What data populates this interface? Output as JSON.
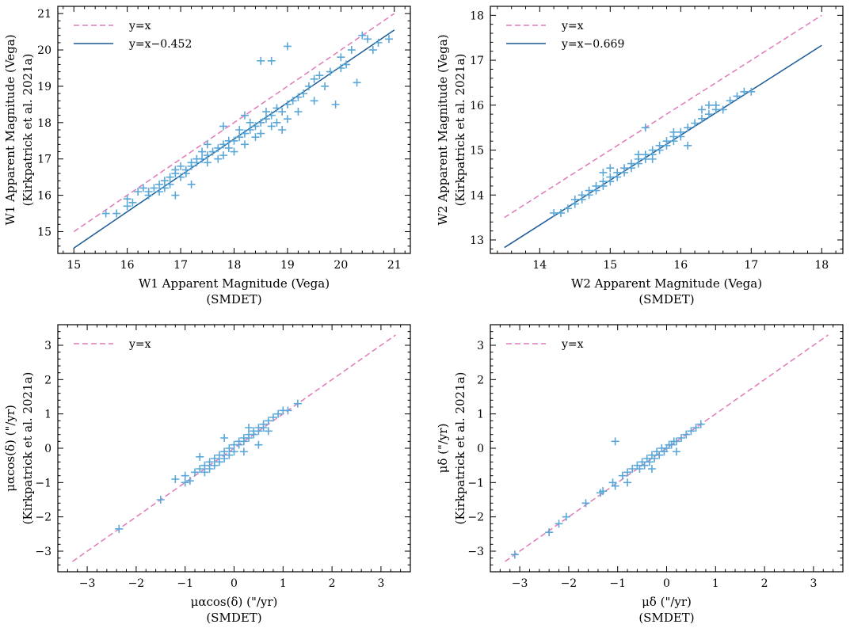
{
  "colors": {
    "identity": "#e07ab8",
    "fit": "#1a5a96",
    "points": "#5ba8d8"
  },
  "chart_data": [
    {
      "id": "w1",
      "type": "scatter",
      "xlabel": [
        "W1 Apparent Magnitude (Vega)",
        "(SMDET)"
      ],
      "ylabel": [
        "W1 Apparent Magnitude (Vega)",
        "(Kirkpatrick et al. 2021a)"
      ],
      "xlim": [
        14.7,
        21.3
      ],
      "ylim": [
        14.4,
        21.2
      ],
      "xticks": [
        15,
        16,
        17,
        18,
        19,
        20,
        21
      ],
      "yticks": [
        15,
        16,
        17,
        18,
        19,
        20,
        21
      ],
      "xminor": 0.2,
      "yminor": 0.2,
      "tickfmt": "plain",
      "lines": [
        {
          "label": "y=x",
          "offset": 0,
          "style": "dashed",
          "range": [
            15,
            21
          ]
        },
        {
          "label": "y=x−0.452",
          "offset": -0.452,
          "style": "solid",
          "range": [
            15,
            21
          ]
        }
      ],
      "points": [
        [
          15.6,
          15.5
        ],
        [
          15.8,
          15.5
        ],
        [
          16.0,
          15.7
        ],
        [
          16.0,
          15.9
        ],
        [
          16.1,
          15.8
        ],
        [
          16.2,
          16.1
        ],
        [
          16.3,
          16.2
        ],
        [
          16.4,
          16.0
        ],
        [
          16.4,
          16.1
        ],
        [
          16.5,
          16.2
        ],
        [
          16.6,
          16.1
        ],
        [
          16.6,
          16.3
        ],
        [
          16.7,
          16.4
        ],
        [
          16.7,
          16.2
        ],
        [
          16.8,
          16.5
        ],
        [
          16.8,
          16.3
        ],
        [
          16.9,
          16.6
        ],
        [
          16.9,
          16.7
        ],
        [
          17.0,
          16.5
        ],
        [
          17.0,
          16.8
        ],
        [
          17.1,
          16.7
        ],
        [
          17.1,
          16.6
        ],
        [
          17.2,
          16.8
        ],
        [
          17.2,
          16.9
        ],
        [
          17.3,
          17.0
        ],
        [
          17.3,
          16.9
        ],
        [
          17.4,
          17.0
        ],
        [
          17.4,
          17.2
        ],
        [
          17.5,
          17.1
        ],
        [
          17.5,
          16.9
        ],
        [
          17.6,
          17.2
        ],
        [
          17.7,
          17.3
        ],
        [
          17.7,
          17.0
        ],
        [
          17.8,
          17.4
        ],
        [
          17.8,
          17.1
        ],
        [
          17.9,
          17.5
        ],
        [
          17.9,
          17.3
        ],
        [
          18.0,
          17.5
        ],
        [
          18.0,
          17.2
        ],
        [
          18.1,
          17.6
        ],
        [
          18.1,
          17.8
        ],
        [
          18.2,
          17.7
        ],
        [
          18.2,
          17.4
        ],
        [
          18.3,
          17.8
        ],
        [
          18.3,
          18.0
        ],
        [
          18.4,
          17.6
        ],
        [
          18.4,
          17.9
        ],
        [
          18.5,
          18.0
        ],
        [
          18.5,
          17.7
        ],
        [
          18.6,
          18.1
        ],
        [
          18.6,
          18.3
        ],
        [
          18.7,
          18.2
        ],
        [
          18.7,
          17.9
        ],
        [
          18.8,
          18.4
        ],
        [
          18.8,
          18.0
        ],
        [
          18.9,
          18.3
        ],
        [
          18.9,
          17.8
        ],
        [
          19.0,
          18.5
        ],
        [
          19.0,
          18.1
        ],
        [
          19.1,
          18.6
        ],
        [
          19.2,
          18.7
        ],
        [
          19.2,
          18.3
        ],
        [
          19.3,
          18.8
        ],
        [
          19.4,
          19.0
        ],
        [
          19.5,
          18.6
        ],
        [
          19.5,
          19.2
        ],
        [
          19.6,
          19.3
        ],
        [
          19.7,
          19.0
        ],
        [
          19.8,
          19.4
        ],
        [
          19.9,
          18.5
        ],
        [
          20.0,
          19.5
        ],
        [
          20.0,
          19.8
        ],
        [
          20.1,
          19.6
        ],
        [
          20.2,
          20.0
        ],
        [
          20.3,
          19.1
        ],
        [
          20.4,
          20.4
        ],
        [
          20.5,
          20.3
        ],
        [
          20.6,
          20.0
        ],
        [
          20.7,
          20.2
        ],
        [
          20.9,
          20.3
        ],
        [
          17.2,
          16.3
        ],
        [
          17.8,
          17.9
        ],
        [
          18.5,
          19.7
        ],
        [
          19.0,
          20.1
        ],
        [
          18.7,
          19.7
        ],
        [
          16.9,
          16.0
        ],
        [
          17.5,
          17.4
        ],
        [
          18.2,
          18.2
        ]
      ]
    },
    {
      "id": "w2",
      "type": "scatter",
      "xlabel": [
        "W2 Apparent Magnitude (Vega)",
        "(SMDET)"
      ],
      "ylabel": [
        "W2 Apparent Magnitude (Vega)",
        "(Kirkpatrick et al. 2021a)"
      ],
      "xlim": [
        13.3,
        18.3
      ],
      "ylim": [
        12.7,
        18.2
      ],
      "xticks": [
        14,
        15,
        16,
        17,
        18
      ],
      "yticks": [
        13,
        14,
        15,
        16,
        17,
        18
      ],
      "xminor": 0.2,
      "yminor": 0.2,
      "tickfmt": "plain",
      "lines": [
        {
          "label": "y=x",
          "offset": 0,
          "style": "dashed",
          "range": [
            13.5,
            18
          ]
        },
        {
          "label": "y=x−0.669",
          "offset": -0.669,
          "style": "solid",
          "range": [
            13.5,
            18
          ]
        }
      ],
      "points": [
        [
          14.2,
          13.6
        ],
        [
          14.3,
          13.6
        ],
        [
          14.4,
          13.7
        ],
        [
          14.5,
          13.8
        ],
        [
          14.5,
          13.9
        ],
        [
          14.6,
          13.9
        ],
        [
          14.6,
          14.0
        ],
        [
          14.7,
          14.0
        ],
        [
          14.7,
          14.1
        ],
        [
          14.8,
          14.1
        ],
        [
          14.8,
          14.2
        ],
        [
          14.9,
          14.2
        ],
        [
          14.9,
          14.3
        ],
        [
          15.0,
          14.3
        ],
        [
          15.0,
          14.4
        ],
        [
          15.1,
          14.4
        ],
        [
          15.1,
          14.5
        ],
        [
          15.2,
          14.5
        ],
        [
          15.2,
          14.6
        ],
        [
          15.3,
          14.6
        ],
        [
          15.3,
          14.7
        ],
        [
          15.4,
          14.7
        ],
        [
          15.4,
          14.8
        ],
        [
          15.5,
          14.8
        ],
        [
          15.5,
          14.9
        ],
        [
          15.6,
          14.9
        ],
        [
          15.6,
          15.0
        ],
        [
          15.7,
          15.0
        ],
        [
          15.7,
          15.1
        ],
        [
          15.8,
          15.1
        ],
        [
          15.8,
          15.2
        ],
        [
          15.9,
          15.2
        ],
        [
          15.9,
          15.3
        ],
        [
          16.0,
          15.3
        ],
        [
          16.0,
          15.4
        ],
        [
          16.1,
          15.5
        ],
        [
          16.2,
          15.6
        ],
        [
          16.3,
          15.7
        ],
        [
          16.3,
          15.9
        ],
        [
          16.4,
          15.8
        ],
        [
          16.4,
          16.0
        ],
        [
          16.5,
          15.9
        ],
        [
          16.5,
          16.0
        ],
        [
          16.6,
          15.9
        ],
        [
          16.7,
          16.1
        ],
        [
          16.8,
          16.2
        ],
        [
          16.9,
          16.3
        ],
        [
          17.0,
          16.3
        ],
        [
          15.5,
          15.5
        ],
        [
          15.4,
          14.9
        ],
        [
          15.6,
          14.8
        ],
        [
          16.1,
          15.1
        ],
        [
          15.9,
          15.4
        ],
        [
          15.0,
          14.6
        ],
        [
          14.9,
          14.5
        ]
      ]
    },
    {
      "id": "pmra",
      "type": "scatter",
      "xlabel": [
        "μαcos(δ) (\"/yr)",
        "(SMDET)"
      ],
      "ylabel": [
        "μαcos(δ) (\"/yr)",
        "(Kirkpatrick et al. 2021a)"
      ],
      "xlim": [
        -3.6,
        3.6
      ],
      "ylim": [
        -3.6,
        3.6
      ],
      "xticks": [
        -3,
        -2,
        -1,
        0,
        1,
        2,
        3
      ],
      "yticks": [
        -3,
        -2,
        -1,
        0,
        1,
        2,
        3
      ],
      "xminor": 0.2,
      "yminor": 0.2,
      "tickfmt": "signed",
      "lines": [
        {
          "label": "y=x",
          "offset": 0,
          "style": "dashed",
          "range": [
            -3.3,
            3.3
          ]
        }
      ],
      "points": [
        [
          -2.35,
          -2.35
        ],
        [
          -1.5,
          -1.5
        ],
        [
          -1.2,
          -0.9
        ],
        [
          -1.0,
          -0.8
        ],
        [
          -1.0,
          -1.0
        ],
        [
          -0.9,
          -0.95
        ],
        [
          -0.8,
          -0.7
        ],
        [
          -0.7,
          -0.25
        ],
        [
          -0.7,
          -0.6
        ],
        [
          -0.6,
          -0.5
        ],
        [
          -0.6,
          -0.7
        ],
        [
          -0.5,
          -0.4
        ],
        [
          -0.5,
          -0.6
        ],
        [
          -0.4,
          -0.3
        ],
        [
          -0.4,
          -0.5
        ],
        [
          -0.3,
          -0.2
        ],
        [
          -0.3,
          -0.4
        ],
        [
          -0.2,
          -0.1
        ],
        [
          -0.2,
          -0.3
        ],
        [
          -0.1,
          0.0
        ],
        [
          -0.1,
          -0.2
        ],
        [
          0.0,
          0.1
        ],
        [
          0.0,
          -0.1
        ],
        [
          0.1,
          0.1
        ],
        [
          0.1,
          0.2
        ],
        [
          0.2,
          0.2
        ],
        [
          0.2,
          0.3
        ],
        [
          0.3,
          0.3
        ],
        [
          0.3,
          0.4
        ],
        [
          0.4,
          0.4
        ],
        [
          0.4,
          0.5
        ],
        [
          0.5,
          0.5
        ],
        [
          0.5,
          0.6
        ],
        [
          0.6,
          0.6
        ],
        [
          0.6,
          0.7
        ],
        [
          0.7,
          0.8
        ],
        [
          0.8,
          0.9
        ],
        [
          0.9,
          1.0
        ],
        [
          1.0,
          1.1
        ],
        [
          1.1,
          1.1
        ],
        [
          1.3,
          1.3
        ],
        [
          0.5,
          0.1
        ],
        [
          0.3,
          0.6
        ],
        [
          -0.2,
          0.3
        ],
        [
          0.7,
          0.5
        ],
        [
          0.2,
          -0.1
        ]
      ]
    },
    {
      "id": "pmdec",
      "type": "scatter",
      "xlabel": [
        "μδ (\"/yr)",
        "(SMDET)"
      ],
      "ylabel": [
        "μδ (\"/yr)",
        "(Kirkpatrick et al. 2021a)"
      ],
      "xlim": [
        -3.6,
        3.6
      ],
      "ylim": [
        -3.6,
        3.6
      ],
      "xticks": [
        -3,
        -2,
        -1,
        0,
        1,
        2,
        3
      ],
      "yticks": [
        -3,
        -2,
        -1,
        0,
        1,
        2,
        3
      ],
      "xminor": 0.2,
      "yminor": 0.2,
      "tickfmt": "signed",
      "lines": [
        {
          "label": "y=x",
          "offset": 0,
          "style": "dashed",
          "range": [
            -3.3,
            3.3
          ]
        }
      ],
      "points": [
        [
          -3.1,
          -3.1
        ],
        [
          -2.4,
          -2.45
        ],
        [
          -2.2,
          -2.2
        ],
        [
          -2.05,
          -2.0
        ],
        [
          -1.65,
          -1.6
        ],
        [
          -1.35,
          -1.3
        ],
        [
          -1.3,
          -1.25
        ],
        [
          -1.1,
          -1.0
        ],
        [
          -1.05,
          -1.1
        ],
        [
          -0.9,
          -0.8
        ],
        [
          -0.8,
          -0.7
        ],
        [
          -0.7,
          -0.6
        ],
        [
          -0.6,
          -0.5
        ],
        [
          -0.55,
          -0.6
        ],
        [
          -0.5,
          -0.4
        ],
        [
          -0.45,
          -0.5
        ],
        [
          -0.4,
          -0.3
        ],
        [
          -0.35,
          -0.4
        ],
        [
          -0.3,
          -0.2
        ],
        [
          -0.25,
          -0.3
        ],
        [
          -0.2,
          -0.1
        ],
        [
          -0.15,
          -0.2
        ],
        [
          -0.1,
          0.0
        ],
        [
          -0.05,
          -0.1
        ],
        [
          0.0,
          0.0
        ],
        [
          0.05,
          0.1
        ],
        [
          0.1,
          0.1
        ],
        [
          0.15,
          0.2
        ],
        [
          0.2,
          0.2
        ],
        [
          0.3,
          0.3
        ],
        [
          0.4,
          0.4
        ],
        [
          0.5,
          0.5
        ],
        [
          0.6,
          0.6
        ],
        [
          0.7,
          0.7
        ],
        [
          -1.05,
          0.2
        ],
        [
          -0.8,
          -1.0
        ],
        [
          -0.3,
          -0.6
        ],
        [
          0.2,
          -0.1
        ]
      ]
    }
  ]
}
